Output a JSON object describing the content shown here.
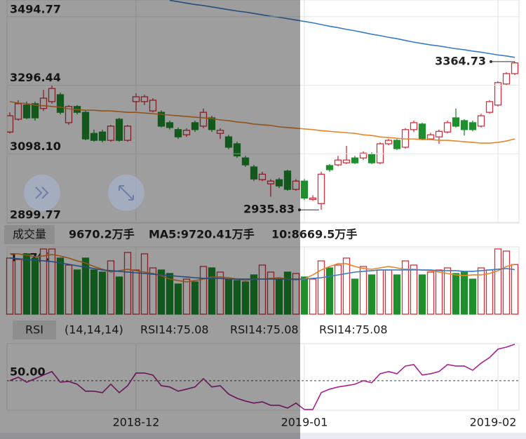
{
  "chart_data": [
    {
      "type": "candlestick",
      "open": [
        3161,
        3198,
        3239,
        3243,
        3229,
        3249,
        3269,
        3188,
        3235,
        3218,
        3157,
        3161,
        3137,
        3198,
        3137,
        3249,
        3249,
        3222,
        3218,
        3188,
        3168,
        3153,
        3188,
        3178,
        3202,
        3157,
        3147,
        3127,
        3086,
        3060,
        3023,
        3011,
        3023,
        3048,
        2995,
        3019,
        2966,
        2954,
        3064,
        3066,
        3072,
        3086,
        3086,
        3096,
        3072,
        3127,
        3137,
        3117,
        3168,
        3184,
        3141,
        3147,
        3161,
        3202,
        3194,
        3188,
        3178,
        3218,
        3239,
        3300,
        3330
      ],
      "close": [
        3208,
        3243,
        3202,
        3202,
        3259,
        3287,
        3218,
        3235,
        3218,
        3141,
        3137,
        3137,
        3178,
        3137,
        3178,
        3263,
        3263,
        3253,
        3178,
        3174,
        3147,
        3166,
        3168,
        3218,
        3168,
        3166,
        3117,
        3092,
        3066,
        3025,
        3039,
        3019,
        3005,
        2995,
        3019,
        2970,
        2970,
        3039,
        3052,
        3080,
        3080,
        3072,
        3100,
        3072,
        3127,
        3137,
        3113,
        3168,
        3188,
        3141,
        3153,
        3163,
        3188,
        3178,
        3168,
        3168,
        3208,
        3249,
        3304,
        3330,
        3361
      ],
      "high": [
        3218,
        3253,
        3249,
        3249,
        3283,
        3296,
        3275,
        3239,
        3239,
        3224,
        3168,
        3168,
        3182,
        3202,
        3182,
        3273,
        3269,
        3259,
        3224,
        3194,
        3174,
        3172,
        3194,
        3229,
        3208,
        3172,
        3153,
        3133,
        3092,
        3066,
        3046,
        3025,
        3029,
        3052,
        3025,
        3025,
        2978,
        3046,
        3068,
        3092,
        3121,
        3092,
        3105,
        3102,
        3131,
        3141,
        3141,
        3172,
        3194,
        3188,
        3159,
        3168,
        3194,
        3229,
        3198,
        3194,
        3214,
        3253,
        3308,
        3334,
        3364.73
      ],
      "low": [
        3157,
        3194,
        3198,
        3194,
        3222,
        3243,
        3212,
        3182,
        3212,
        3137,
        3133,
        3131,
        3133,
        3133,
        3133,
        3222,
        3239,
        3218,
        3174,
        3168,
        3141,
        3147,
        3161,
        3172,
        3161,
        3141,
        3111,
        3086,
        3060,
        3019,
        3019,
        2974,
        2999,
        2991,
        2991,
        2964,
        2962,
        2935.83,
        3046,
        3062,
        3068,
        3068,
        3080,
        3068,
        3068,
        3123,
        3109,
        3113,
        3161,
        3137,
        3137,
        3127,
        3157,
        3174,
        3151,
        3163,
        3174,
        3214,
        3235,
        3296,
        3326
      ],
      "up_color": "#d0343f",
      "down_color": "#1f8f2e",
      "series": [
        {
          "color": "#3a7bc8",
          "values": [
            null,
            null,
            null,
            null,
            null,
            null,
            null,
            null,
            null,
            null,
            null,
            null,
            null,
            null,
            null,
            null,
            null,
            null,
            null,
            3542,
            3538,
            3534,
            3530,
            3527,
            3523,
            3519,
            3515,
            3511,
            3508,
            3504,
            3500,
            3496,
            3493,
            3489,
            3485,
            3481,
            3477,
            3472,
            3467,
            3463,
            3458,
            3454,
            3449,
            3444,
            3440,
            3435,
            3431,
            3426,
            3421,
            3417,
            3413,
            3410,
            3406,
            3402,
            3399,
            3395,
            3392,
            3388,
            3384,
            3381,
            3377
          ]
        },
        {
          "color": "#e8862a",
          "values": [
            3249,
            3245,
            3243,
            3239,
            3237,
            3235,
            3233,
            3228,
            3226,
            3224,
            3224,
            3222,
            3222,
            3220,
            3218,
            3218,
            3216,
            3214,
            3212,
            3210,
            3208,
            3206,
            3204,
            3202,
            3200,
            3196,
            3194,
            3190,
            3188,
            3184,
            3182,
            3180,
            3176,
            3174,
            3172,
            3170,
            3168,
            3165,
            3163,
            3161,
            3159,
            3157,
            3153,
            3151,
            3147,
            3145,
            3143,
            3141,
            3141,
            3139,
            3139,
            3137,
            3137,
            3135,
            3133,
            3131,
            3129,
            3129,
            3131,
            3135,
            3141
          ]
        }
      ],
      "ylim": [
        2899.77,
        3543
      ],
      "yticks": [
        3494.77,
        3296.44,
        {
          "value": 3098.1,
          "label": "3098.10"
        },
        2899.77
      ],
      "grid": true
    },
    {
      "type": "bar",
      "title": "成交量",
      "header_label": "9670.2万手",
      "values": [
        10928,
        10655,
        11748,
        10928,
        12700,
        12700,
        10928,
        9562,
        8606,
        10928,
        8606,
        8196,
        10382,
        7240,
        12021,
        8606,
        11748,
        9016,
        8606,
        7923,
        5874,
        6830,
        6284,
        9289,
        9016,
        8196,
        6830,
        6557,
        6284,
        7650,
        9562,
        8196,
        6830,
        8196,
        7923,
        7240,
        6830,
        10382,
        9016,
        9562,
        10928,
        6830,
        9289,
        7650,
        8606,
        8606,
        7650,
        10382,
        9562,
        7650,
        8196,
        8606,
        9016,
        7923,
        8196,
        6830,
        9016,
        8606,
        12700,
        12294,
        9670.2
      ],
      "series": [
        {
          "name": "MA5:9720.41万手",
          "color": "#e8862a",
          "values": [
            11748,
            11748,
            11474,
            11201,
            11338,
            11611,
            11338,
            10928,
            10382,
            9972,
            9289,
            8742,
            8196,
            8469,
            8742,
            8469,
            8196,
            7923,
            7513,
            6830,
            6557,
            6284,
            6557,
            6830,
            7240,
            7240,
            7103,
            6830,
            6557,
            6830,
            6830,
            6967,
            7103,
            6830,
            6693,
            6830,
            7650,
            8606,
            9289,
            9835,
            9835,
            9289,
            8879,
            8742,
            9016,
            9289,
            9016,
            8742,
            8742,
            8606,
            8469,
            8196,
            7923,
            7650,
            7513,
            7650,
            7650,
            7923,
            8469,
            9289,
            9720.41
          ]
        },
        {
          "name": "10:8669.5万手",
          "color": "#3a7bc8",
          "values": [
            10928,
            10791,
            10655,
            10518,
            10382,
            10245,
            9972,
            9699,
            9425,
            9152,
            8879,
            8606,
            8469,
            8333,
            8196,
            8059,
            7923,
            7786,
            7650,
            7513,
            7376,
            7240,
            7103,
            6967,
            6967,
            6967,
            6830,
            6830,
            6830,
            6830,
            6830,
            6830,
            6830,
            6830,
            6830,
            6830,
            6967,
            7103,
            7376,
            7650,
            7923,
            8196,
            8333,
            8469,
            8606,
            8606,
            8606,
            8606,
            8606,
            8606,
            8606,
            8469,
            8469,
            8469,
            8333,
            8333,
            8469,
            8606,
            8742,
            8879,
            8669.5
          ]
        }
      ],
      "ylim": [
        0,
        12700
      ],
      "yticks": [
        {
          "value": 12700,
          "label": "1.27亿"
        }
      ]
    },
    {
      "type": "line",
      "title": "RSI",
      "subtitle": "(14,14,14)",
      "legend": [
        {
          "text": "RSI14:75.08",
          "color": "#e07b1a"
        },
        {
          "text": "RSI14:75.08",
          "color": "#3a6fb5"
        },
        {
          "text": "RSI14:75.08",
          "color": "#a8238f"
        }
      ],
      "categories": [
        null,
        null,
        null,
        null,
        null,
        null,
        null,
        null,
        null,
        null,
        null,
        null,
        null,
        null,
        null,
        "2018-12",
        null,
        null,
        null,
        null,
        null,
        null,
        null,
        null,
        null,
        null,
        null,
        null,
        null,
        null,
        null,
        null,
        null,
        null,
        null,
        "2019-01",
        null,
        null,
        null,
        null,
        null,
        null,
        null,
        null,
        null,
        null,
        null,
        null,
        null,
        null,
        null,
        null,
        null,
        null,
        null,
        null,
        null,
        null,
        "2019-02",
        null,
        null
      ],
      "series": [
        {
          "color": "#a8238f",
          "values": [
            50,
            52.4,
            49,
            51.4,
            53.9,
            56.3,
            49,
            49.5,
            47.6,
            42.8,
            42.8,
            41.8,
            47.6,
            41.8,
            46.6,
            55.3,
            55.3,
            53.9,
            46.6,
            45.7,
            42.8,
            44.2,
            45.7,
            51.4,
            45.7,
            46.6,
            40.8,
            37.9,
            36,
            34.6,
            35.5,
            33.1,
            33.1,
            31.2,
            34.6,
            30.2,
            30.2,
            41.8,
            44.2,
            45.7,
            46.6,
            47.6,
            50,
            48.6,
            54.8,
            56.3,
            54.8,
            60.1,
            61.1,
            53.9,
            54.8,
            56.3,
            61.1,
            60.1,
            60.1,
            57.2,
            62.1,
            65.9,
            71.7,
            73.1,
            75.08
          ]
        }
      ],
      "ylim": [
        29.7,
        75.5
      ],
      "yticks": [
        {
          "value": 50,
          "label": "50.00"
        }
      ]
    }
  ]
}
